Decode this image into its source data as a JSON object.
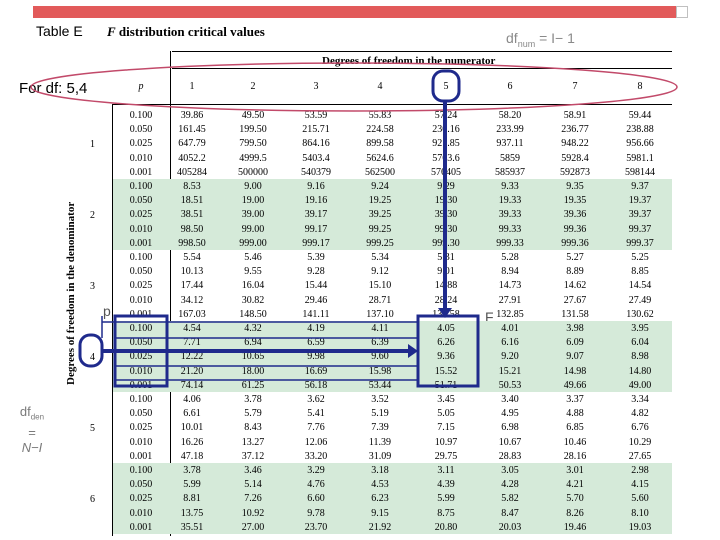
{
  "title": {
    "table_label": "Table E",
    "dist": "F",
    "text": "distribution critical values"
  },
  "annotations": {
    "dfnum_text": "df",
    "dfnum_sub": "num",
    "dfnum_eq": " = I− 1",
    "fordf": "For df: 5,4",
    "dfden_text": "df",
    "dfden_sub": "den",
    "dfden_eq": "=",
    "dfden_expr": "N−I",
    "p_label": "p",
    "f_label": "F"
  },
  "table": {
    "numerator_heading": "Degrees of freedom in the numerator",
    "denominator_heading": "Degrees of freedom in the denominator",
    "p_header": "p",
    "columns": [
      "1",
      "2",
      "3",
      "4",
      "5",
      "6",
      "7",
      "8"
    ],
    "p_values": [
      "0.100",
      "0.050",
      "0.025",
      "0.010",
      "0.001"
    ],
    "groups": [
      {
        "df": "1",
        "shaded": false,
        "rows": [
          [
            "39.86",
            "49.50",
            "53.59",
            "55.83",
            "57.24",
            "58.20",
            "58.91",
            "59.44"
          ],
          [
            "161.45",
            "199.50",
            "215.71",
            "224.58",
            "230.16",
            "233.99",
            "236.77",
            "238.88"
          ],
          [
            "647.79",
            "799.50",
            "864.16",
            "899.58",
            "921.85",
            "937.11",
            "948.22",
            "956.66"
          ],
          [
            "4052.2",
            "4999.5",
            "5403.4",
            "5624.6",
            "5763.6",
            "5859",
            "5928.4",
            "5981.1"
          ],
          [
            "405284",
            "500000",
            "540379",
            "562500",
            "576405",
            "585937",
            "592873",
            "598144"
          ]
        ]
      },
      {
        "df": "2",
        "shaded": true,
        "rows": [
          [
            "8.53",
            "9.00",
            "9.16",
            "9.24",
            "9.29",
            "9.33",
            "9.35",
            "9.37"
          ],
          [
            "18.51",
            "19.00",
            "19.16",
            "19.25",
            "19.30",
            "19.33",
            "19.35",
            "19.37"
          ],
          [
            "38.51",
            "39.00",
            "39.17",
            "39.25",
            "39.30",
            "39.33",
            "39.36",
            "39.37"
          ],
          [
            "98.50",
            "99.00",
            "99.17",
            "99.25",
            "99.30",
            "99.33",
            "99.36",
            "99.37"
          ],
          [
            "998.50",
            "999.00",
            "999.17",
            "999.25",
            "999.30",
            "999.33",
            "999.36",
            "999.37"
          ]
        ]
      },
      {
        "df": "3",
        "shaded": false,
        "rows": [
          [
            "5.54",
            "5.46",
            "5.39",
            "5.34",
            "5.31",
            "5.28",
            "5.27",
            "5.25"
          ],
          [
            "10.13",
            "9.55",
            "9.28",
            "9.12",
            "9.01",
            "8.94",
            "8.89",
            "8.85"
          ],
          [
            "17.44",
            "16.04",
            "15.44",
            "15.10",
            "14.88",
            "14.73",
            "14.62",
            "14.54"
          ],
          [
            "34.12",
            "30.82",
            "29.46",
            "28.71",
            "28.24",
            "27.91",
            "27.67",
            "27.49"
          ],
          [
            "167.03",
            "148.50",
            "141.11",
            "137.10",
            "134.58",
            "132.85",
            "131.58",
            "130.62"
          ]
        ]
      },
      {
        "df": "4",
        "shaded": true,
        "rows": [
          [
            "4.54",
            "4.32",
            "4.19",
            "4.11",
            "4.05",
            "4.01",
            "3.98",
            "3.95"
          ],
          [
            "7.71",
            "6.94",
            "6.59",
            "6.39",
            "6.26",
            "6.16",
            "6.09",
            "6.04"
          ],
          [
            "12.22",
            "10.65",
            "9.98",
            "9.60",
            "9.36",
            "9.20",
            "9.07",
            "8.98"
          ],
          [
            "21.20",
            "18.00",
            "16.69",
            "15.98",
            "15.52",
            "15.21",
            "14.98",
            "14.80"
          ],
          [
            "74.14",
            "61.25",
            "56.18",
            "53.44",
            "51.71",
            "50.53",
            "49.66",
            "49.00"
          ]
        ]
      },
      {
        "df": "5",
        "shaded": false,
        "rows": [
          [
            "4.06",
            "3.78",
            "3.62",
            "3.52",
            "3.45",
            "3.40",
            "3.37",
            "3.34"
          ],
          [
            "6.61",
            "5.79",
            "5.41",
            "5.19",
            "5.05",
            "4.95",
            "4.88",
            "4.82"
          ],
          [
            "10.01",
            "8.43",
            "7.76",
            "7.39",
            "7.15",
            "6.98",
            "6.85",
            "6.76"
          ],
          [
            "16.26",
            "13.27",
            "12.06",
            "11.39",
            "10.97",
            "10.67",
            "10.46",
            "10.29"
          ],
          [
            "47.18",
            "37.12",
            "33.20",
            "31.09",
            "29.75",
            "28.83",
            "28.16",
            "27.65"
          ]
        ]
      },
      {
        "df": "6",
        "shaded": true,
        "rows": [
          [
            "3.78",
            "3.46",
            "3.29",
            "3.18",
            "3.11",
            "3.05",
            "3.01",
            "2.98"
          ],
          [
            "5.99",
            "5.14",
            "4.76",
            "4.53",
            "4.39",
            "4.28",
            "4.21",
            "4.15"
          ],
          [
            "8.81",
            "7.26",
            "6.60",
            "6.23",
            "5.99",
            "5.82",
            "5.70",
            "5.60"
          ],
          [
            "13.75",
            "10.92",
            "9.78",
            "9.15",
            "8.75",
            "8.47",
            "8.26",
            "8.10"
          ],
          [
            "35.51",
            "27.00",
            "23.70",
            "21.92",
            "20.80",
            "20.03",
            "19.46",
            "19.03"
          ]
        ]
      }
    ]
  },
  "colors": {
    "top_bar": "#e25a5a",
    "row_shade": "#d5ead9",
    "highlight_blue": "#1f2a8c",
    "header_oval": "#c24a6a"
  }
}
